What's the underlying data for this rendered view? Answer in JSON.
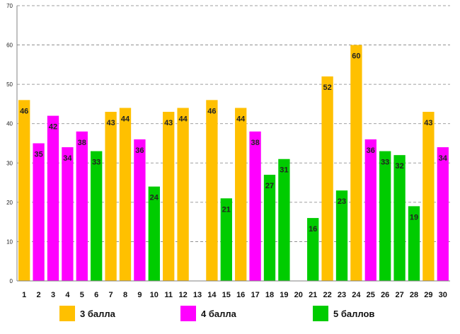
{
  "chart_data": {
    "type": "bar",
    "title": "",
    "xlabel": "",
    "ylabel": "",
    "ylim": [
      0,
      70
    ],
    "yticks": [
      "0",
      "10",
      "20",
      "30",
      "40",
      "50",
      "60",
      "70"
    ],
    "grid": true,
    "categories": [
      "1",
      "2",
      "3",
      "4",
      "5",
      "6",
      "7",
      "8",
      "9",
      "10",
      "11",
      "12",
      "13",
      "14",
      "15",
      "16",
      "17",
      "18",
      "19",
      "20",
      "21",
      "22",
      "23",
      "24",
      "25",
      "26",
      "27",
      "28",
      "29",
      "30"
    ],
    "values": [
      46,
      35,
      42,
      34,
      38,
      33,
      43,
      44,
      36,
      24,
      43,
      44,
      null,
      46,
      21,
      44,
      38,
      27,
      31,
      null,
      16,
      52,
      23,
      60,
      36,
      33,
      32,
      19,
      43,
      34
    ],
    "labels": [
      "46",
      "35",
      "42",
      "34",
      "38",
      "33",
      "43",
      "44",
      "36",
      "24",
      "43",
      "44",
      "",
      "46",
      "21",
      "44",
      "38",
      "27",
      "31",
      "",
      "16",
      "52",
      "23",
      "60",
      "36",
      "33",
      "32",
      "19",
      "43",
      "34"
    ],
    "grades": [
      "3",
      "4",
      "4",
      "4",
      "4",
      "5",
      "3",
      "3",
      "4",
      "5",
      "3",
      "3",
      "",
      "3",
      "5",
      "3",
      "4",
      "5",
      "5",
      "",
      "5",
      "3",
      "5",
      "3",
      "4",
      "5",
      "5",
      "5",
      "3",
      "4"
    ],
    "series": [
      {
        "key": "3",
        "name": "3 балла",
        "color": "#FFC000"
      },
      {
        "key": "4",
        "name": "4 балла",
        "color": "#FF00FF"
      },
      {
        "key": "5",
        "name": "5 баллов",
        "color": "#00CC00"
      }
    ],
    "legend_position": "bottom"
  }
}
